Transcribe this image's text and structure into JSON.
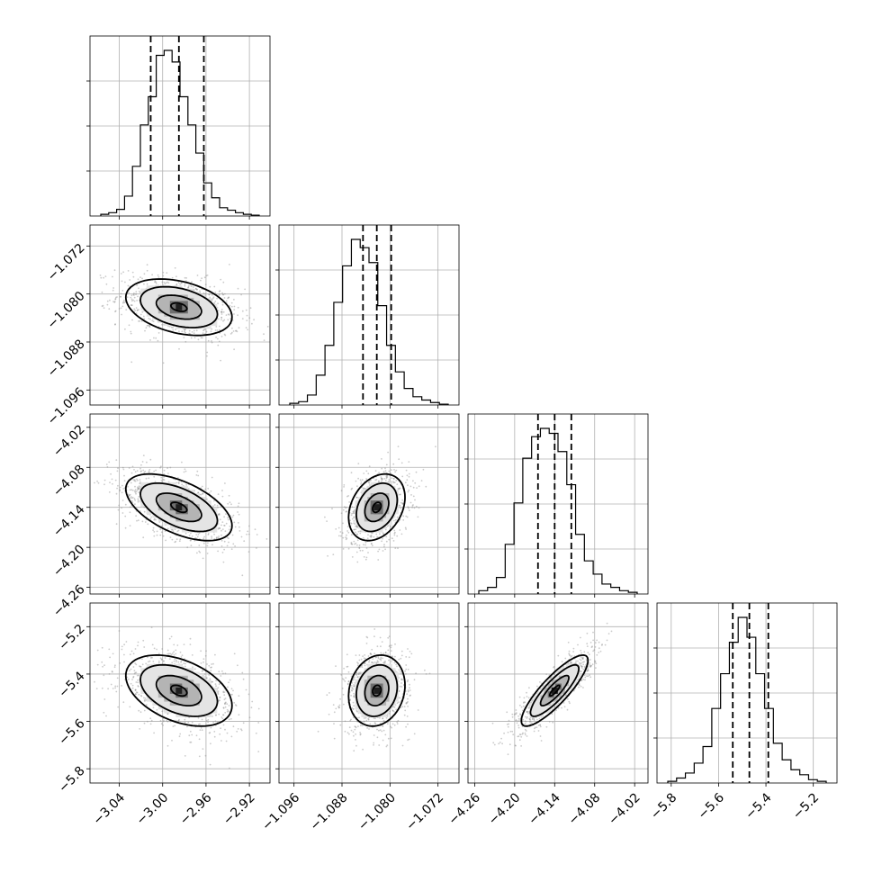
{
  "chart_data": {
    "type": "corner",
    "title": "",
    "parameters": [
      {
        "index": 0,
        "median": -2.985,
        "q16": -3.011,
        "q84": -2.962,
        "range": [
          -3.067,
          -2.901
        ],
        "ticks": [
          "−3.04",
          "−3.00",
          "−2.96",
          "−2.92"
        ],
        "hist": [
          0.01,
          0.02,
          0.04,
          0.12,
          0.3,
          0.55,
          0.72,
          0.97,
          1.0,
          0.93,
          0.72,
          0.55,
          0.38,
          0.2,
          0.11,
          0.05,
          0.035,
          0.02,
          0.01,
          0.005
        ]
      },
      {
        "index": 1,
        "median": -1.0822,
        "q16": -1.0845,
        "q84": -1.0798,
        "range": [
          -1.0985,
          -1.0685
        ],
        "ticks": [
          "−1.096",
          "−1.088",
          "−1.080",
          "−1.072"
        ],
        "hist": [
          0.01,
          0.02,
          0.06,
          0.18,
          0.36,
          0.62,
          0.84,
          1.0,
          0.95,
          0.86,
          0.6,
          0.36,
          0.2,
          0.1,
          0.05,
          0.03,
          0.015,
          0.005
        ]
      },
      {
        "index": 2,
        "median": -4.14,
        "q16": -4.165,
        "q84": -4.115,
        "range": [
          -4.27,
          -4.0
        ],
        "ticks": [
          "−4.26",
          "−4.20",
          "−4.14",
          "−4.08",
          "−4.02"
        ],
        "hist": [
          0.02,
          0.04,
          0.1,
          0.3,
          0.55,
          0.82,
          0.95,
          1.0,
          0.97,
          0.86,
          0.66,
          0.36,
          0.2,
          0.12,
          0.06,
          0.04,
          0.02,
          0.01
        ]
      },
      {
        "index": 3,
        "median": -5.47,
        "q16": -5.54,
        "q84": -5.39,
        "range": [
          -5.86,
          -5.1
        ],
        "ticks": [
          "−5.8",
          "−5.6",
          "−5.4",
          "−5.2"
        ],
        "hist": [
          0.01,
          0.03,
          0.06,
          0.12,
          0.22,
          0.45,
          0.66,
          0.85,
          1.0,
          0.88,
          0.66,
          0.45,
          0.24,
          0.14,
          0.08,
          0.05,
          0.02,
          0.01
        ]
      }
    ],
    "correlations": [
      {
        "row": 1,
        "col": 0,
        "rho": -0.35
      },
      {
        "row": 2,
        "col": 0,
        "rho": -0.55
      },
      {
        "row": 2,
        "col": 1,
        "rho": 0.3
      },
      {
        "row": 3,
        "col": 0,
        "rho": -0.42
      },
      {
        "row": 3,
        "col": 1,
        "rho": 0.15
      },
      {
        "row": 3,
        "col": 2,
        "rho": 0.85
      }
    ],
    "colors": {
      "points": "#8c8c8c",
      "lines": "#000000",
      "grid": "#b0b0b0"
    },
    "grid": true,
    "quantiles": [
      0.16,
      0.5,
      0.84
    ],
    "contour_levels": [
      0.39,
      0.86,
      1.5
    ]
  }
}
